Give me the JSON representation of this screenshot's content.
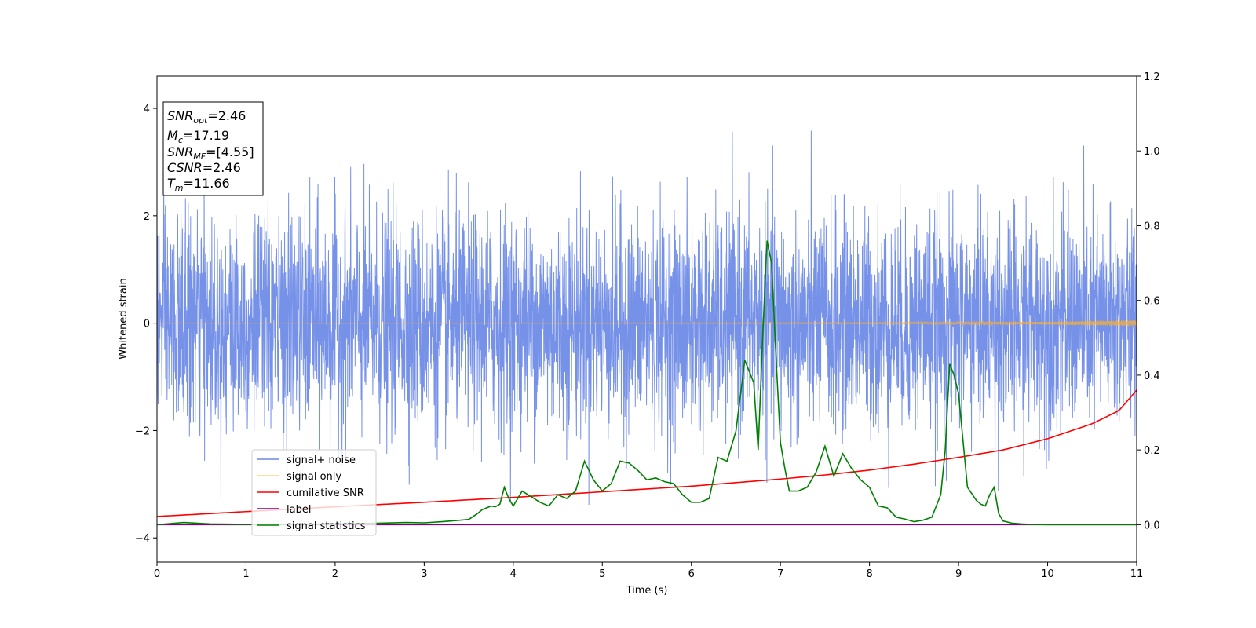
{
  "chart_data": {
    "type": "line",
    "xlabel": "Time (s)",
    "ylabel_left": "Whitened strain",
    "xlim": [
      0,
      11
    ],
    "ylim_left": [
      -4.45,
      4.6
    ],
    "ylim_right": [
      -0.1,
      1.2
    ],
    "x_ticks": [
      0,
      1,
      2,
      3,
      4,
      5,
      6,
      7,
      8,
      9,
      10,
      11
    ],
    "y_ticks_left": [
      -4,
      -2,
      0,
      2,
      4
    ],
    "y_ticks_right": [
      0.0,
      0.2,
      0.4,
      0.6,
      0.8,
      1.0,
      1.2
    ],
    "grid": false,
    "legend_position": "lower-left",
    "colors": {
      "signal_noise": "#6a88e6",
      "signal_only": "#ffb02e",
      "cumulative_snr": "#ff0000",
      "label": "#800080",
      "signal_statistics": "#008000"
    },
    "info_box": {
      "snr_opt": {
        "base": "SNR",
        "sub": "opt",
        "value": "=2.46"
      },
      "mc": {
        "base": "M",
        "sub": "c",
        "value": "=17.19"
      },
      "snr_mf": {
        "base": "SNR",
        "sub": "MF",
        "value": "=[4.55]"
      },
      "csnr": {
        "base": "CSNR",
        "sub": "",
        "value": "=2.46"
      },
      "tm": {
        "base": "T",
        "sub": "m",
        "value": "=11.66"
      }
    },
    "series": [
      {
        "name": "signal+ noise",
        "axis": "left",
        "note": "dense whitened strain noise, approx. amplitude 1, spanning 0–11 s",
        "peak_max": 3.85,
        "peak_min": -4.05
      },
      {
        "name": "signal only",
        "axis": "left",
        "note": "small chirp near zero growing toward end",
        "x": [
          0,
          2,
          4,
          6,
          8,
          9,
          10,
          10.5,
          11
        ],
        "amplitude": [
          0.002,
          0.003,
          0.004,
          0.006,
          0.01,
          0.015,
          0.025,
          0.04,
          0.06
        ]
      },
      {
        "name": "cumilative SNR",
        "axis": "right",
        "x": [
          0,
          1,
          2,
          3,
          4,
          5,
          6,
          7,
          7.5,
          8,
          8.5,
          9,
          9.5,
          10,
          10.5,
          10.8,
          11
        ],
        "y": [
          0.022,
          0.035,
          0.048,
          0.06,
          0.073,
          0.088,
          0.103,
          0.122,
          0.133,
          0.146,
          0.162,
          0.18,
          0.2,
          0.23,
          0.27,
          0.305,
          0.36
        ]
      },
      {
        "name": "label",
        "axis": "right",
        "x": [
          0,
          11
        ],
        "y": [
          0,
          0
        ]
      },
      {
        "name": "signal statistics",
        "axis": "right",
        "x": [
          0,
          0.3,
          0.6,
          1.0,
          1.5,
          2.0,
          2.5,
          2.8,
          3.0,
          3.2,
          3.4,
          3.5,
          3.6,
          3.65,
          3.7,
          3.75,
          3.8,
          3.85,
          3.9,
          3.95,
          4.0,
          4.1,
          4.2,
          4.3,
          4.4,
          4.5,
          4.6,
          4.7,
          4.8,
          4.9,
          5.0,
          5.1,
          5.2,
          5.3,
          5.4,
          5.5,
          5.6,
          5.7,
          5.8,
          5.9,
          6.0,
          6.1,
          6.2,
          6.3,
          6.4,
          6.5,
          6.6,
          6.7,
          6.75,
          6.8,
          6.85,
          6.9,
          6.95,
          7.0,
          7.05,
          7.1,
          7.2,
          7.3,
          7.4,
          7.5,
          7.6,
          7.7,
          7.8,
          7.9,
          8.0,
          8.1,
          8.2,
          8.3,
          8.4,
          8.5,
          8.6,
          8.7,
          8.8,
          8.85,
          8.9,
          8.95,
          9.0,
          9.1,
          9.2,
          9.25,
          9.3,
          9.35,
          9.4,
          9.45,
          9.5,
          9.6,
          9.7,
          9.8,
          10.0,
          10.5,
          11.0
        ],
        "y": [
          0.0,
          0.006,
          0.002,
          0.001,
          0.001,
          0.002,
          0.004,
          0.006,
          0.005,
          0.008,
          0.012,
          0.014,
          0.03,
          0.04,
          0.045,
          0.05,
          0.048,
          0.055,
          0.1,
          0.07,
          0.05,
          0.09,
          0.075,
          0.06,
          0.05,
          0.08,
          0.07,
          0.09,
          0.17,
          0.12,
          0.09,
          0.11,
          0.17,
          0.165,
          0.145,
          0.12,
          0.125,
          0.115,
          0.11,
          0.08,
          0.06,
          0.06,
          0.07,
          0.18,
          0.17,
          0.25,
          0.44,
          0.38,
          0.2,
          0.5,
          0.76,
          0.7,
          0.45,
          0.22,
          0.15,
          0.09,
          0.09,
          0.1,
          0.14,
          0.21,
          0.13,
          0.19,
          0.15,
          0.12,
          0.1,
          0.05,
          0.045,
          0.02,
          0.015,
          0.008,
          0.012,
          0.02,
          0.08,
          0.2,
          0.43,
          0.4,
          0.35,
          0.1,
          0.065,
          0.055,
          0.05,
          0.08,
          0.1,
          0.03,
          0.01,
          0.004,
          0.002,
          0.001,
          0.0,
          0.0,
          0.0
        ]
      }
    ]
  }
}
